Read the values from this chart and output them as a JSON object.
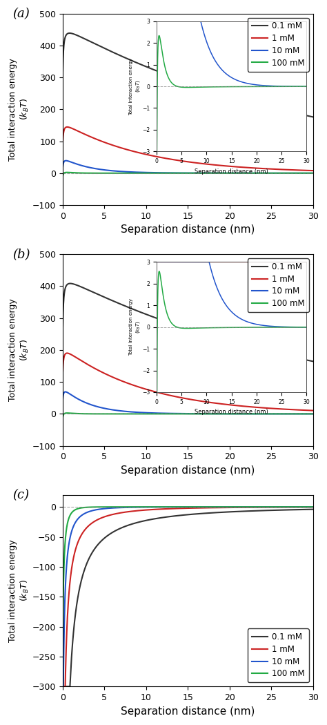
{
  "colors": [
    "#333333",
    "#cc2222",
    "#2255cc",
    "#22aa44"
  ],
  "labels": [
    "0.1 mM",
    "1 mM",
    "10 mM",
    "100 mM"
  ],
  "panel_labels": [
    "(a)",
    "(b)",
    "(c)"
  ],
  "xlabel": "Separation distance (nm)",
  "ylabel": "Total interaction energy\n($k_BT$)",
  "xlim": [
    0,
    30
  ],
  "ab_ylim": [
    -100,
    500
  ],
  "c_ylim": [
    -300,
    20
  ],
  "ab_yticks": [
    -100,
    0,
    100,
    200,
    300,
    400,
    500
  ],
  "c_yticks": [
    -300,
    -250,
    -200,
    -150,
    -100,
    -50,
    0
  ],
  "xticks": [
    0,
    5,
    10,
    15,
    20,
    25,
    30
  ],
  "inset_yticks_a": [
    -3,
    -2,
    -1,
    0,
    1,
    2,
    3
  ],
  "inset_yticks_b": [
    -3,
    -2,
    -1,
    0,
    1,
    2,
    3
  ],
  "inset_xticks": [
    0,
    5,
    10,
    15,
    20,
    25,
    30
  ],
  "kappa_ab": [
    0.032,
    0.1,
    0.316,
    1.0
  ],
  "edl_a": [
    460.0,
    160.0,
    50.0,
    7.0
  ],
  "edl_b": [
    430.0,
    210.0,
    85.0,
    8.0
  ],
  "vdw_a": [
    9.0,
    4.0,
    2.0,
    1.0
  ],
  "vdw_b": [
    10.0,
    5.0,
    2.5,
    1.2
  ],
  "vdw_power_a": 1.5,
  "vdw_power_b": 1.5,
  "kappa_c": [
    0.032,
    0.1,
    0.316,
    1.0
  ],
  "vdw_c_amp": [
    9.0,
    4.0,
    2.0,
    1.0
  ],
  "vdw_c_scale": 35.0
}
